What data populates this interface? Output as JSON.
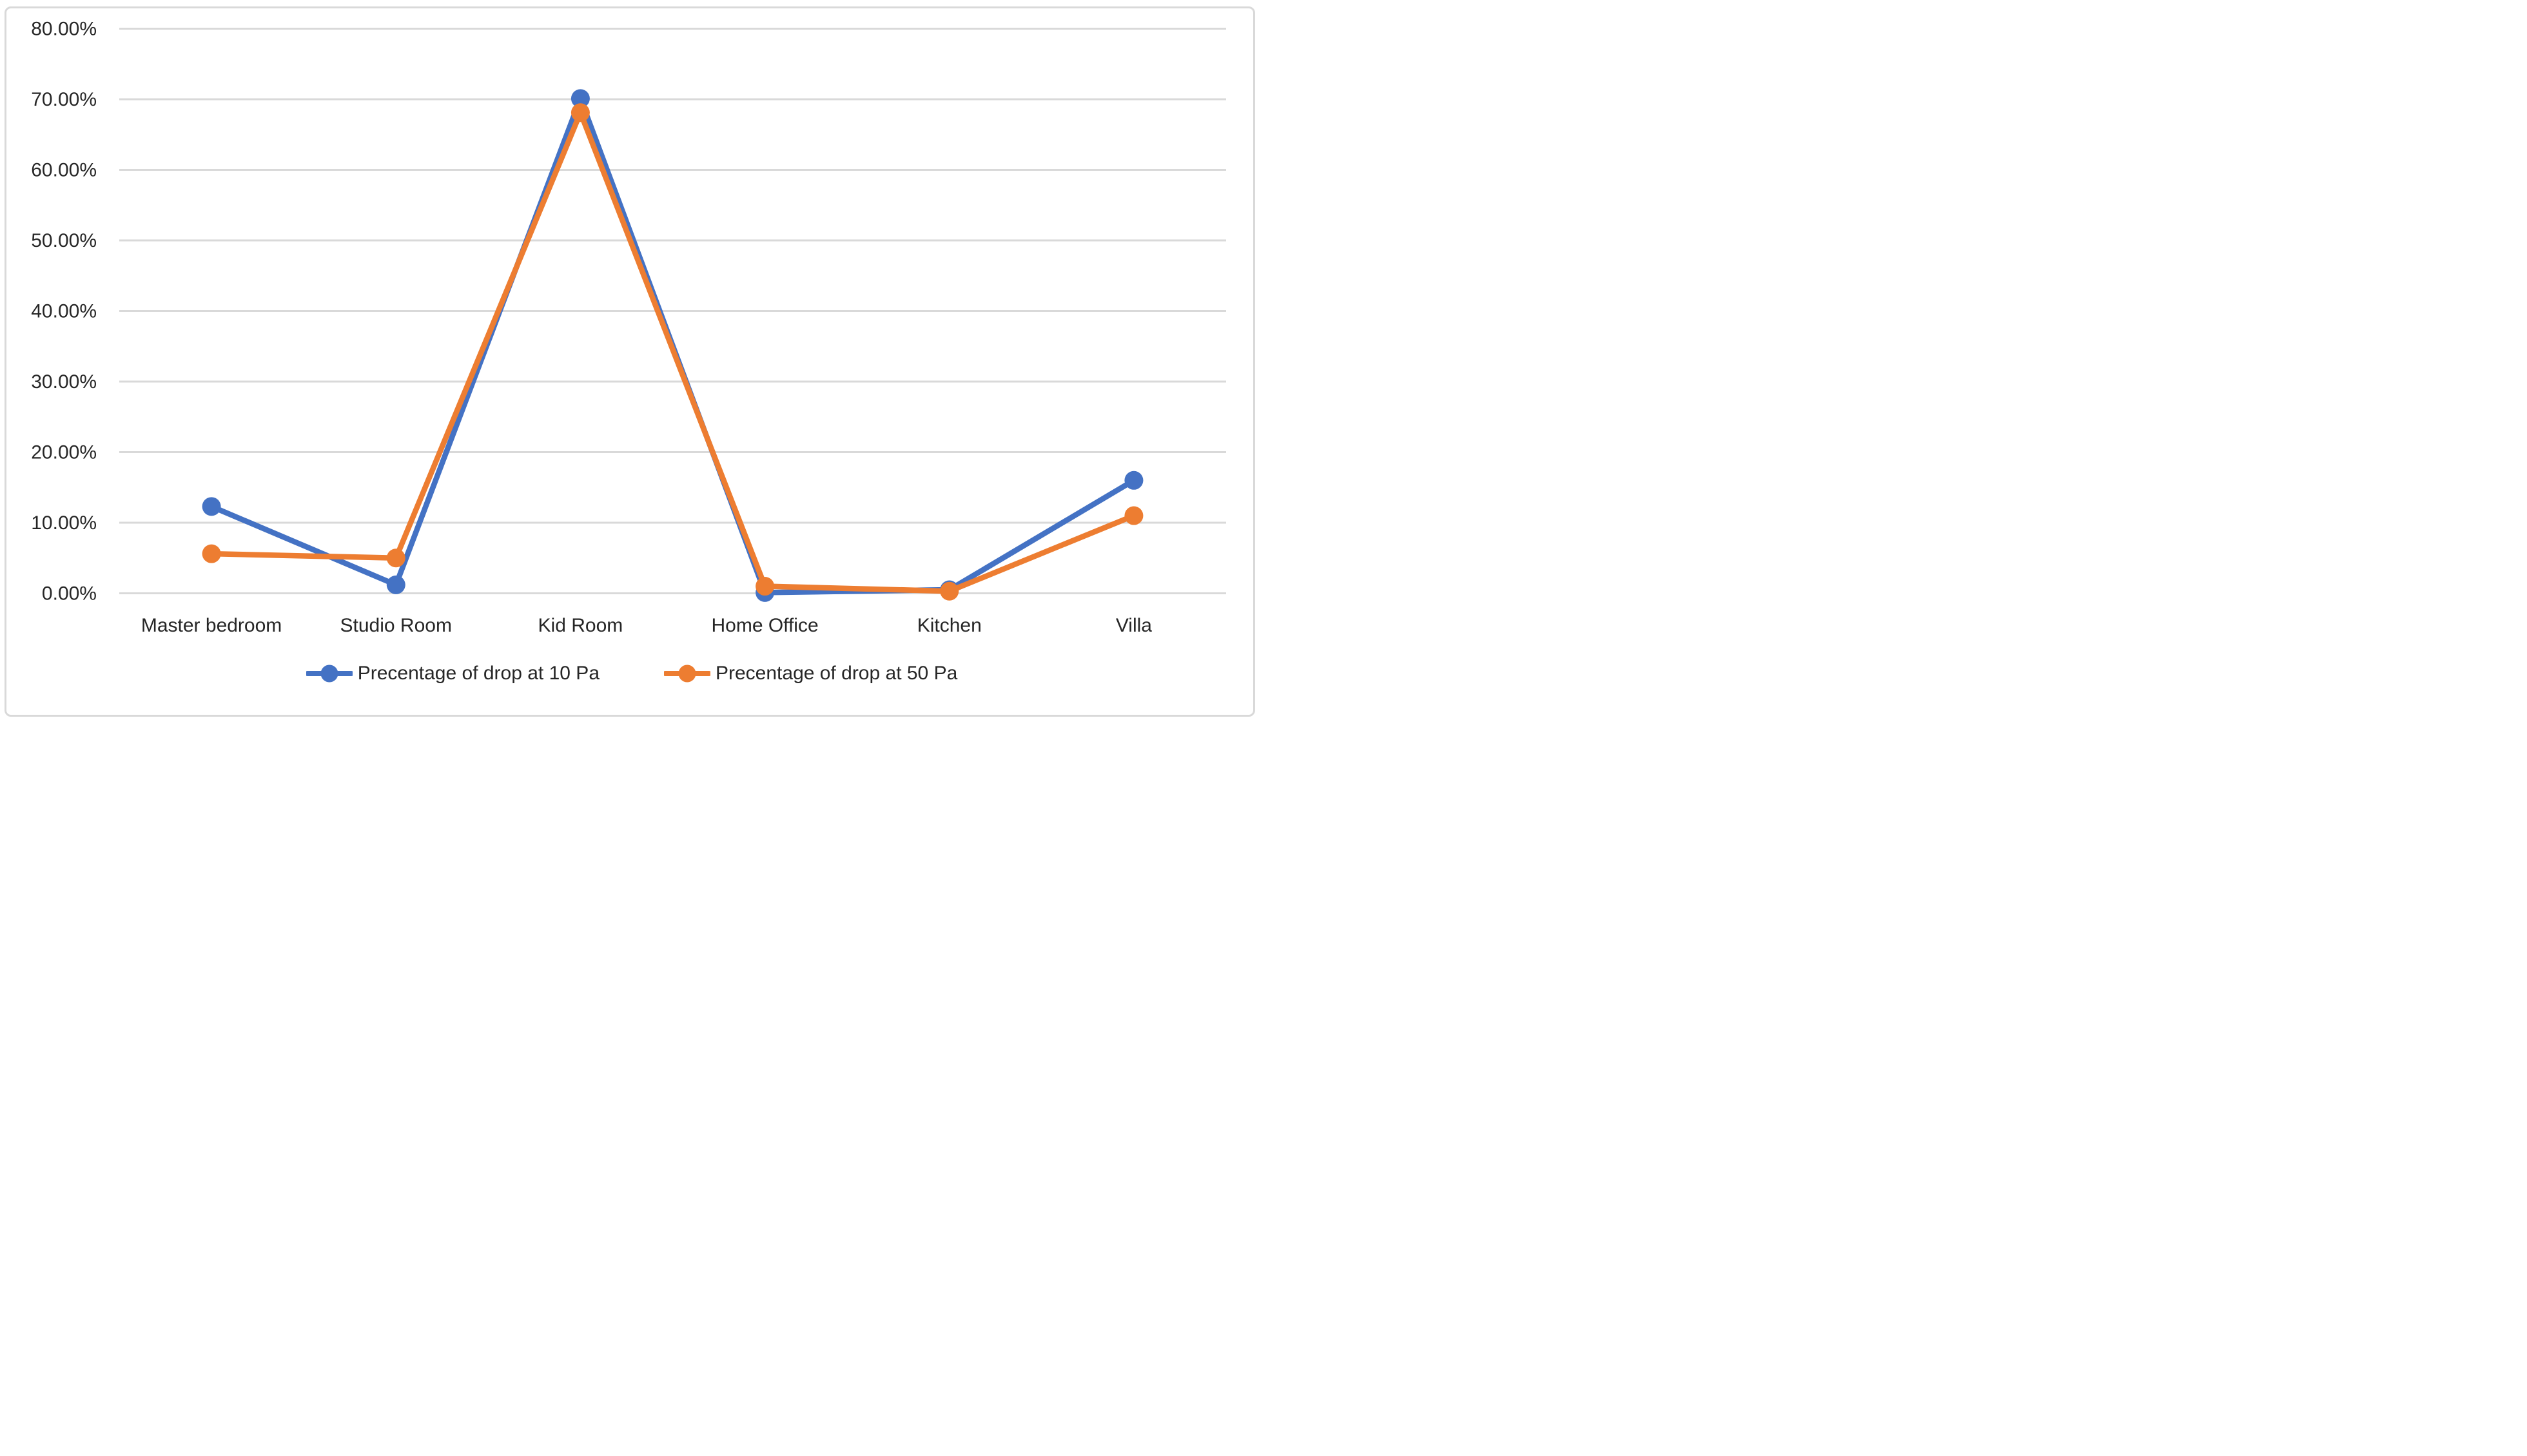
{
  "chart": {
    "background": "#FFFFFF",
    "frame_border_color": "#D9D9D9",
    "gridline_color": "#D9D9D9",
    "text_color": "#262626"
  },
  "chart_data": {
    "type": "line",
    "title": "",
    "xlabel": "",
    "ylabel": "",
    "categories": [
      "Master bedroom",
      "Studio Room",
      "Kid Room",
      "Home Office",
      "Kitchen",
      "Villa"
    ],
    "series": [
      {
        "name": "Precentage of drop at 10 Pa",
        "color": "#4472C4",
        "values": [
          12.3,
          1.2,
          70.1,
          0.1,
          0.5,
          16.0
        ]
      },
      {
        "name": "Precentage of drop at 50 Pa",
        "color": "#ED7D31",
        "values": [
          5.6,
          5.0,
          68.1,
          1.0,
          0.3,
          11.0
        ]
      }
    ],
    "ylim": [
      0,
      80
    ],
    "y_tick_step": 10,
    "y_tick_labels": [
      "0.00%",
      "10.00%",
      "20.00%",
      "30.00%",
      "40.00%",
      "50.00%",
      "60.00%",
      "70.00%",
      "80.00%"
    ],
    "grid": true,
    "legend_position": "bottom",
    "marker": "circle"
  }
}
